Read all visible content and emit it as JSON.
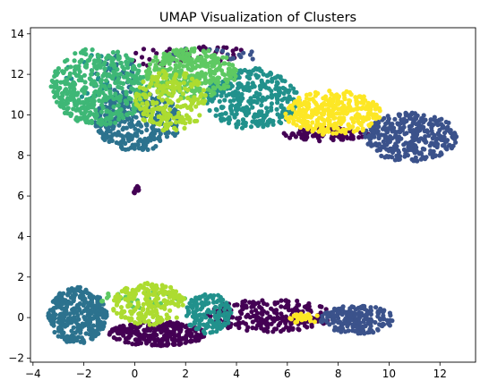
{
  "chart_data": {
    "type": "scatter",
    "title": "UMAP Visualization of Clusters",
    "xlabel": "",
    "ylabel": "",
    "xlim": [
      -4.1,
      13.4
    ],
    "ylim": [
      -2.2,
      14.3
    ],
    "x_ticks": [
      -4,
      -2,
      0,
      2,
      4,
      6,
      8,
      10,
      12
    ],
    "y_ticks": [
      -2,
      0,
      2,
      4,
      6,
      8,
      10,
      12,
      14
    ],
    "grid": false,
    "legend": "none",
    "colormap": "viridis",
    "clusters": [
      {
        "color": "#440154",
        "regions": [
          {
            "x": [
              5.8,
              9.2
            ],
            "y": [
              8.7,
              9.4
            ],
            "n": 90
          },
          {
            "x": [
              2.0,
              4.4
            ],
            "y": [
              12.6,
              13.4
            ],
            "n": 25
          },
          {
            "x": [
              -0.1,
              0.2
            ],
            "y": [
              6.1,
              6.5
            ],
            "n": 14
          },
          {
            "x": [
              -1.0,
              2.8
            ],
            "y": [
              -1.4,
              -0.2
            ],
            "n": 260
          },
          {
            "x": [
              2.8,
              7.8
            ],
            "y": [
              -0.7,
              0.9
            ],
            "n": 260
          },
          {
            "x": [
              -0.3,
              2.0
            ],
            "y": [
              12.4,
              13.3
            ],
            "n": 20
          }
        ]
      },
      {
        "color": "#3b528b",
        "regions": [
          {
            "x": [
              9.0,
              12.7
            ],
            "y": [
              7.7,
              10.1
            ],
            "n": 320
          },
          {
            "x": [
              7.3,
              10.2
            ],
            "y": [
              -0.8,
              0.6
            ],
            "n": 190
          },
          {
            "x": [
              0.8,
              5.0
            ],
            "y": [
              12.6,
              13.3
            ],
            "n": 25
          }
        ]
      },
      {
        "color": "#2c728e",
        "regions": [
          {
            "x": [
              -1.6,
              1.8
            ],
            "y": [
              8.2,
              11.2
            ],
            "n": 340
          },
          {
            "x": [
              -3.4,
              -1.1
            ],
            "y": [
              -1.3,
              1.5
            ],
            "n": 320
          },
          {
            "x": [
              -1.6,
              0.0
            ],
            "y": [
              11.0,
              13.0
            ],
            "n": 40
          }
        ]
      },
      {
        "color": "#21918c",
        "regions": [
          {
            "x": [
              2.8,
              6.5
            ],
            "y": [
              9.3,
              12.3
            ],
            "n": 330
          },
          {
            "x": [
              2.0,
              3.8
            ],
            "y": [
              -0.8,
              1.2
            ],
            "n": 140
          },
          {
            "x": [
              -2.8,
              -0.5
            ],
            "y": [
              10.8,
              13.0
            ],
            "n": 30
          }
        ]
      },
      {
        "color": "#3eb776",
        "regions": [
          {
            "x": [
              -3.3,
              0.5
            ],
            "y": [
              9.5,
              13.3
            ],
            "n": 420
          }
        ]
      },
      {
        "color": "#5ec962",
        "regions": [
          {
            "x": [
              0.4,
              4.0
            ],
            "y": [
              10.8,
              13.3
            ],
            "n": 320
          },
          {
            "x": [
              -1.5,
              2.0
            ],
            "y": [
              0.4,
              1.4
            ],
            "n": 35
          }
        ]
      },
      {
        "color": "#addc30",
        "regions": [
          {
            "x": [
              0.0,
              2.8
            ],
            "y": [
              9.2,
              12.2
            ],
            "n": 210
          },
          {
            "x": [
              -0.9,
              2.0
            ],
            "y": [
              -0.4,
              1.7
            ],
            "n": 200
          }
        ]
      },
      {
        "color": "#fde725",
        "regions": [
          {
            "x": [
              5.9,
              9.7
            ],
            "y": [
              9.0,
              11.2
            ],
            "n": 340
          },
          {
            "x": [
              6.1,
              7.3
            ],
            "y": [
              -0.3,
              0.2
            ],
            "n": 25
          }
        ]
      }
    ]
  }
}
